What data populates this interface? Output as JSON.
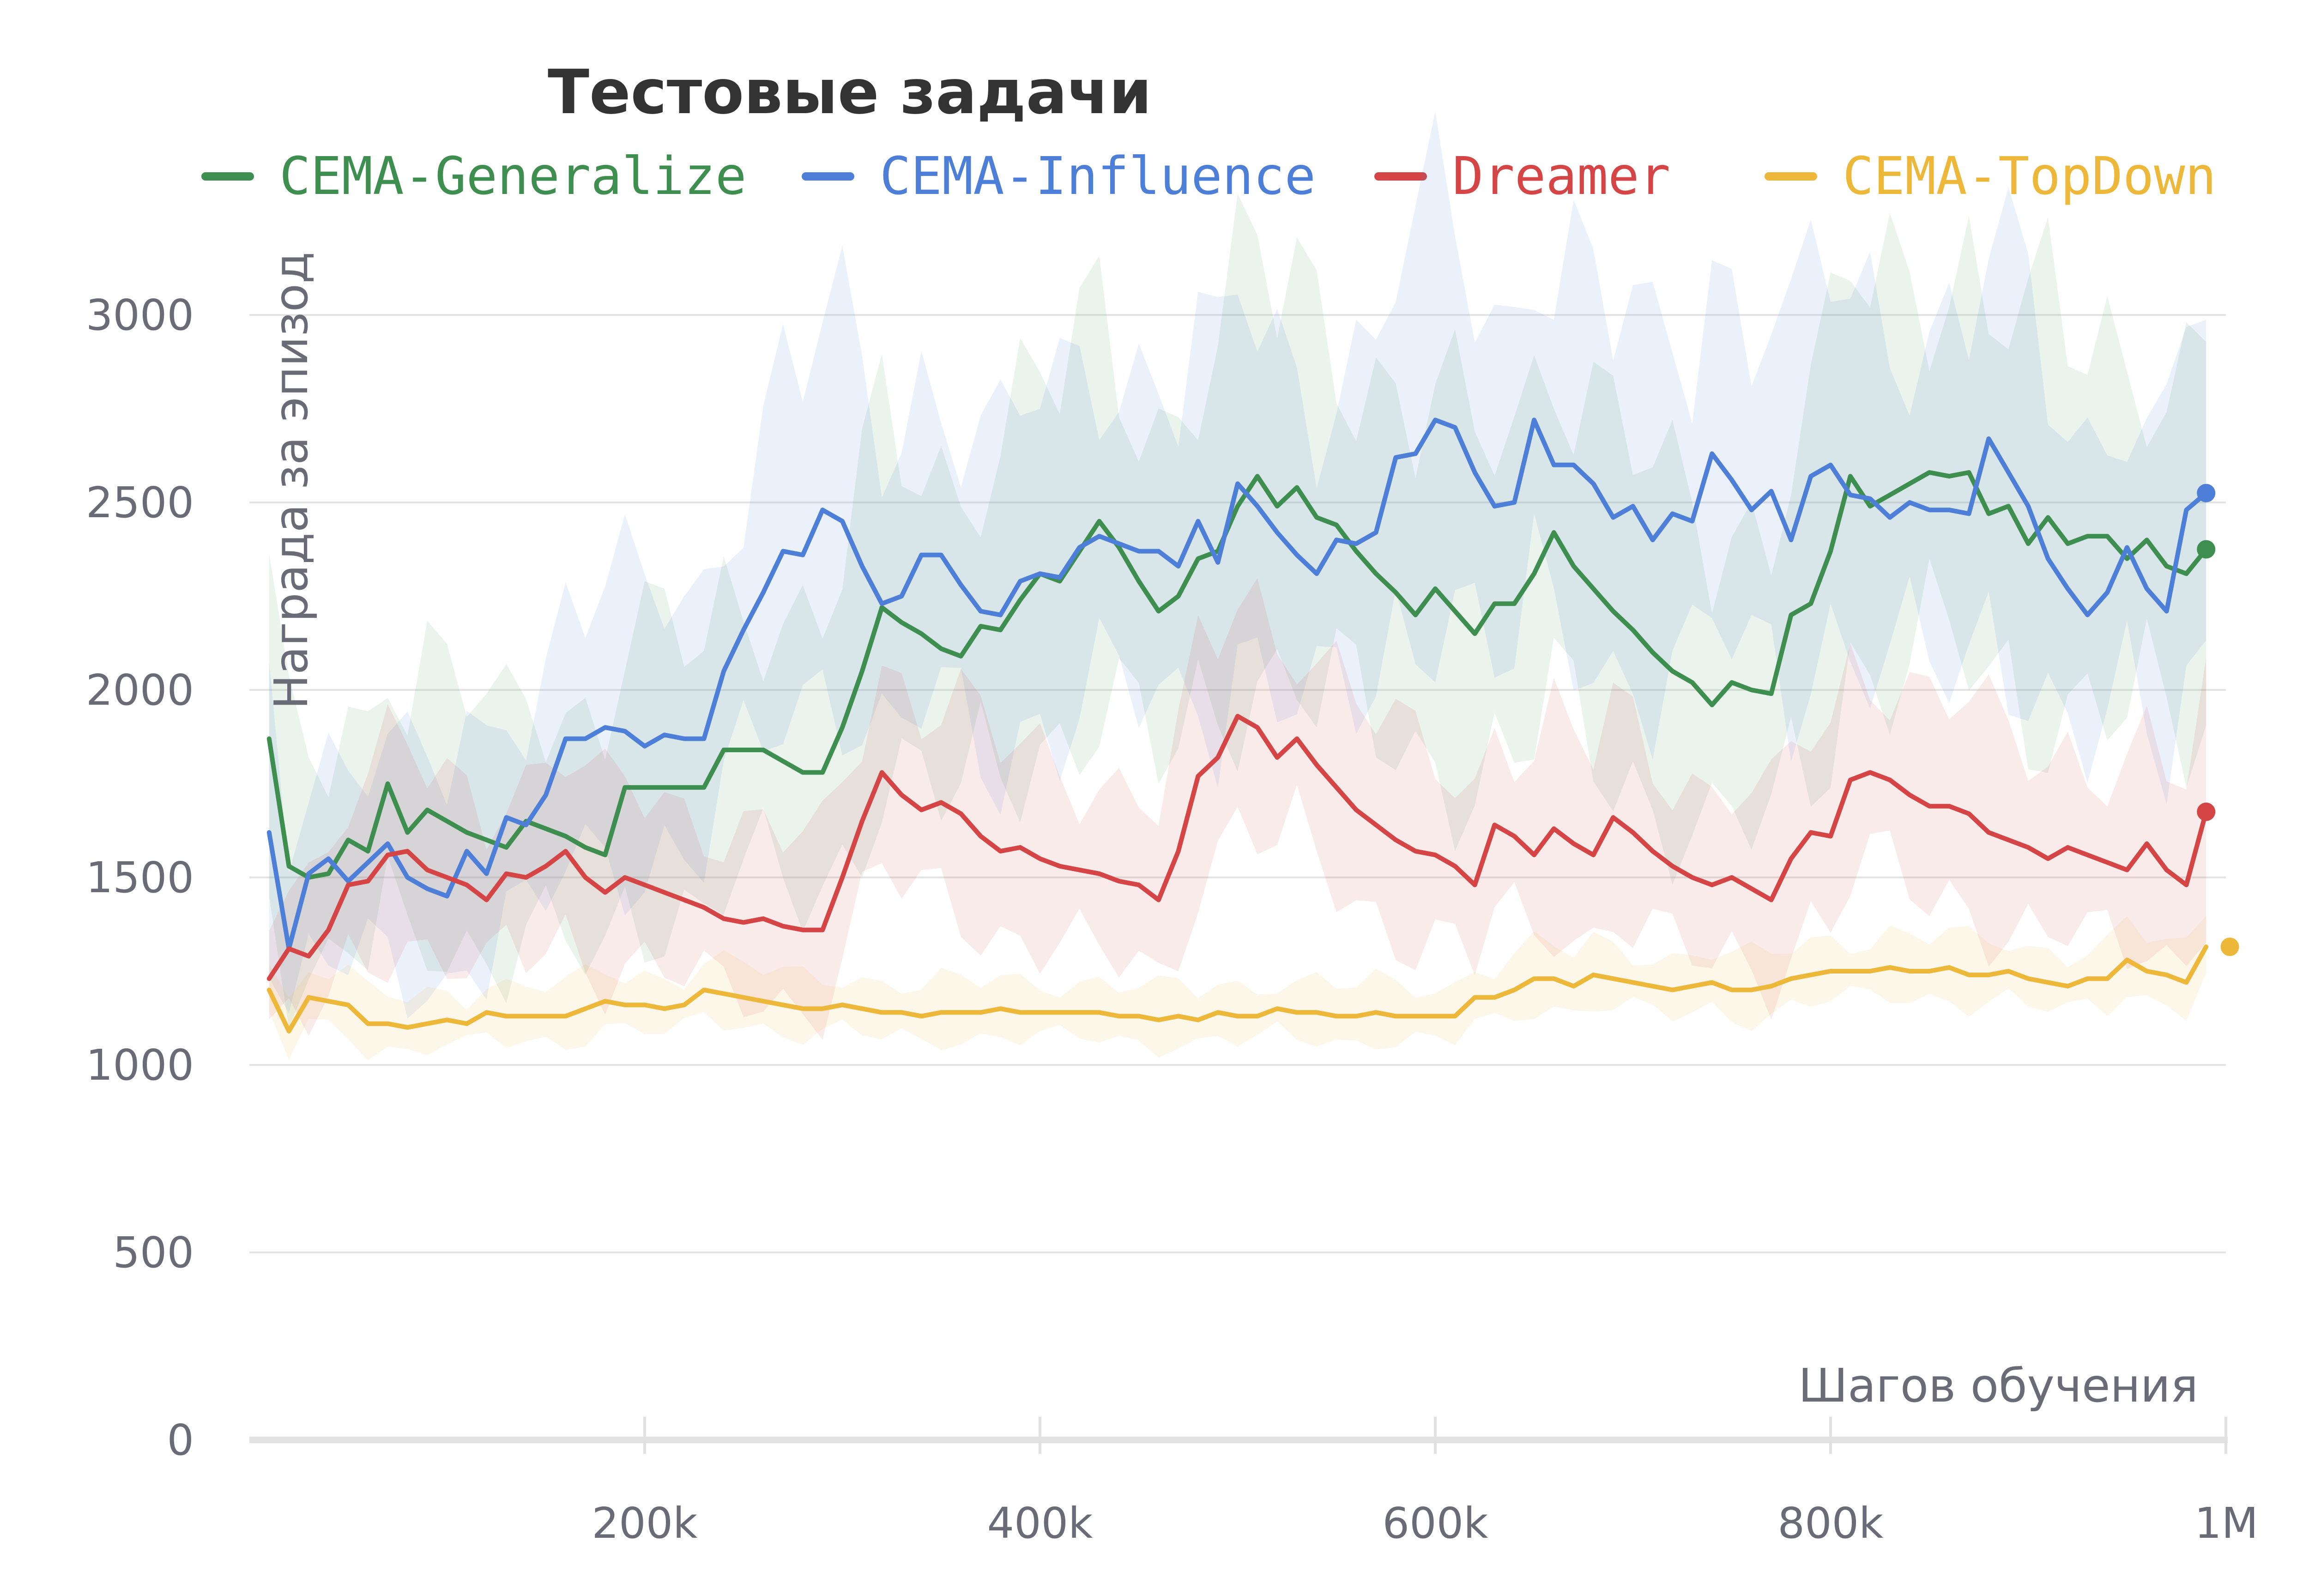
{
  "chart_data": {
    "type": "line",
    "title": "Тестовые задачи",
    "xlabel": "Шагов обучения",
    "ylabel": "Награда за эпизод",
    "xlim": [
      0,
      1000000
    ],
    "ylim": [
      0,
      3200
    ],
    "x_ticks": [
      200000,
      400000,
      600000,
      800000,
      1000000
    ],
    "x_tick_labels": [
      "200k",
      "400k",
      "600k",
      "800k",
      "1M"
    ],
    "y_ticks": [
      0,
      500,
      1000,
      1500,
      2000,
      2500,
      3000
    ],
    "y_tick_labels": [
      "0",
      "500",
      "1000",
      "1500",
      "2000",
      "2500",
      "3000"
    ],
    "grid": true,
    "legend_position": "top",
    "x": [
      10000,
      20000,
      30000,
      40000,
      50000,
      60000,
      70000,
      80000,
      90000,
      100000,
      110000,
      120000,
      130000,
      140000,
      150000,
      160000,
      170000,
      180000,
      190000,
      200000,
      210000,
      220000,
      230000,
      240000,
      250000,
      260000,
      270000,
      280000,
      290000,
      300000,
      310000,
      320000,
      330000,
      340000,
      350000,
      360000,
      370000,
      380000,
      390000,
      400000,
      410000,
      420000,
      430000,
      440000,
      450000,
      460000,
      470000,
      480000,
      490000,
      500000,
      510000,
      520000,
      530000,
      540000,
      550000,
      560000,
      570000,
      580000,
      590000,
      600000,
      610000,
      620000,
      630000,
      640000,
      650000,
      660000,
      670000,
      680000,
      690000,
      700000,
      710000,
      720000,
      730000,
      740000,
      750000,
      760000,
      770000,
      780000,
      790000,
      800000,
      810000,
      820000,
      830000,
      840000,
      850000,
      860000,
      870000,
      880000,
      890000,
      900000,
      910000,
      920000,
      930000,
      940000,
      950000,
      960000,
      970000,
      980000,
      990000
    ],
    "series": [
      {
        "name": "CEMA-Generalize",
        "color": "#3e8e50",
        "end_marker": 2375,
        "values": [
          1870,
          1530,
          1500,
          1510,
          1600,
          1570,
          1750,
          1620,
          1680,
          1650,
          1620,
          1600,
          1580,
          1650,
          1630,
          1610,
          1580,
          1560,
          1740,
          1740,
          1740,
          1740,
          1740,
          1840,
          1840,
          1840,
          1810,
          1780,
          1780,
          1900,
          2050,
          2220,
          2180,
          2150,
          2110,
          2090,
          2170,
          2160,
          2240,
          2310,
          2290,
          2370,
          2450,
          2380,
          2290,
          2210,
          2250,
          2350,
          2370,
          2490,
          2570,
          2490,
          2540,
          2460,
          2440,
          2370,
          2310,
          2260,
          2200,
          2270,
          2210,
          2150,
          2230,
          2230,
          2310,
          2420,
          2330,
          2270,
          2210,
          2160,
          2100,
          2050,
          2020,
          1960,
          2020,
          2000,
          1990,
          2200,
          2230,
          2370,
          2570,
          2490,
          2520,
          2550,
          2580,
          2570,
          2580,
          2470,
          2490,
          2390,
          2460,
          2390,
          2410,
          2410,
          2350,
          2400,
          2330,
          2310,
          2375
        ]
      },
      {
        "name": "CEMA-Influence",
        "color": "#4d7fd8",
        "end_marker": 2525,
        "values": [
          1620,
          1310,
          1510,
          1550,
          1490,
          1540,
          1590,
          1500,
          1470,
          1450,
          1570,
          1510,
          1660,
          1640,
          1720,
          1870,
          1870,
          1900,
          1890,
          1850,
          1880,
          1870,
          1870,
          2050,
          2160,
          2260,
          2370,
          2360,
          2480,
          2450,
          2330,
          2230,
          2250,
          2360,
          2360,
          2280,
          2210,
          2200,
          2290,
          2310,
          2300,
          2380,
          2410,
          2390,
          2370,
          2370,
          2330,
          2450,
          2340,
          2550,
          2490,
          2420,
          2360,
          2310,
          2400,
          2390,
          2420,
          2620,
          2630,
          2720,
          2700,
          2580,
          2490,
          2500,
          2720,
          2600,
          2600,
          2550,
          2460,
          2490,
          2400,
          2470,
          2450,
          2630,
          2560,
          2480,
          2530,
          2400,
          2570,
          2600,
          2520,
          2510,
          2460,
          2500,
          2480,
          2480,
          2470,
          2670,
          2580,
          2490,
          2350,
          2270,
          2200,
          2260,
          2380,
          2270,
          2210,
          2480,
          2525
        ]
      },
      {
        "name": "Dreamer",
        "color": "#d64545",
        "end_marker": 1675,
        "values": [
          1230,
          1310,
          1290,
          1360,
          1480,
          1490,
          1560,
          1570,
          1520,
          1500,
          1480,
          1440,
          1510,
          1500,
          1530,
          1570,
          1500,
          1460,
          1500,
          1480,
          1460,
          1440,
          1420,
          1390,
          1380,
          1390,
          1370,
          1360,
          1360,
          1500,
          1650,
          1780,
          1720,
          1680,
          1700,
          1670,
          1610,
          1570,
          1580,
          1550,
          1530,
          1520,
          1510,
          1490,
          1480,
          1440,
          1570,
          1770,
          1820,
          1930,
          1900,
          1820,
          1870,
          1800,
          1740,
          1680,
          1640,
          1600,
          1570,
          1560,
          1530,
          1480,
          1640,
          1610,
          1560,
          1630,
          1590,
          1560,
          1660,
          1620,
          1570,
          1530,
          1500,
          1480,
          1500,
          1470,
          1440,
          1550,
          1620,
          1610,
          1760,
          1780,
          1760,
          1720,
          1690,
          1690,
          1670,
          1620,
          1600,
          1580,
          1550,
          1580,
          1560,
          1540,
          1520,
          1590,
          1520,
          1480,
          1675
        ]
      },
      {
        "name": "CEMA-TopDown",
        "color": "#edb83a",
        "end_marker": 1315,
        "values": [
          1200,
          1090,
          1180,
          1170,
          1160,
          1110,
          1110,
          1100,
          1110,
          1120,
          1110,
          1140,
          1130,
          1130,
          1130,
          1130,
          1150,
          1170,
          1160,
          1160,
          1150,
          1160,
          1200,
          1190,
          1180,
          1170,
          1160,
          1150,
          1150,
          1160,
          1150,
          1140,
          1140,
          1130,
          1140,
          1140,
          1140,
          1150,
          1140,
          1140,
          1140,
          1140,
          1140,
          1130,
          1130,
          1120,
          1130,
          1120,
          1140,
          1130,
          1130,
          1150,
          1140,
          1140,
          1130,
          1130,
          1140,
          1130,
          1130,
          1130,
          1130,
          1180,
          1180,
          1200,
          1230,
          1230,
          1210,
          1240,
          1230,
          1220,
          1210,
          1200,
          1210,
          1220,
          1200,
          1200,
          1210,
          1230,
          1240,
          1250,
          1250,
          1250,
          1260,
          1250,
          1250,
          1260,
          1240,
          1240,
          1250,
          1230,
          1220,
          1210,
          1230,
          1230,
          1280,
          1250,
          1240,
          1220,
          1315
        ]
      }
    ]
  }
}
